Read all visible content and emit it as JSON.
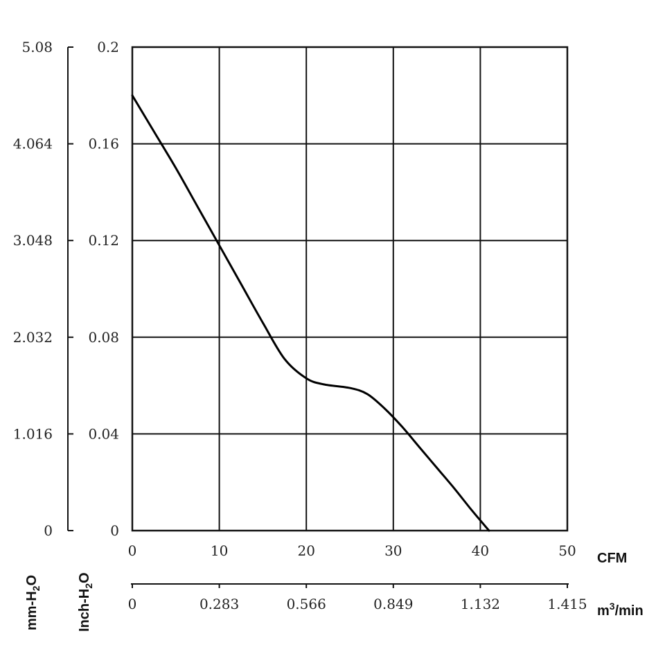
{
  "chart_data": {
    "type": "line",
    "x_primary": {
      "unit": "CFM",
      "range": [
        0,
        50
      ],
      "ticks": [
        "0",
        "10",
        "20",
        "30",
        "40",
        "50"
      ]
    },
    "x_secondary": {
      "unit_base": "m",
      "unit_sup": "3",
      "unit_tail": "/min",
      "ticks": [
        "0",
        "0.283",
        "0.566",
        "0.849",
        "1.132",
        "1.415"
      ]
    },
    "y_primary": {
      "unit_base": "Inch-H",
      "unit_sub": "2",
      "unit_tail": "O",
      "range": [
        0,
        0.2
      ],
      "ticks": [
        "0",
        "0.04",
        "0.08",
        "0.12",
        "0.16",
        "0.2"
      ]
    },
    "y_secondary": {
      "unit_base": "mm-H",
      "unit_sub": "2",
      "unit_tail": "O",
      "ticks": [
        "0",
        "1.016",
        "2.032",
        "3.048",
        "4.064",
        "5.08"
      ]
    },
    "grid": true,
    "series": [
      {
        "x": [
          0,
          2.5,
          5,
          7.5,
          10,
          12.5,
          15,
          17.5,
          20,
          22,
          25,
          27,
          29,
          31,
          33,
          35,
          37,
          39,
          41
        ],
        "y": [
          0.18,
          0.165,
          0.15,
          0.134,
          0.118,
          0.102,
          0.086,
          0.071,
          0.063,
          0.0605,
          0.059,
          0.0565,
          0.0505,
          0.043,
          0.0345,
          0.026,
          0.0175,
          0.0085,
          0.0
        ]
      }
    ]
  }
}
